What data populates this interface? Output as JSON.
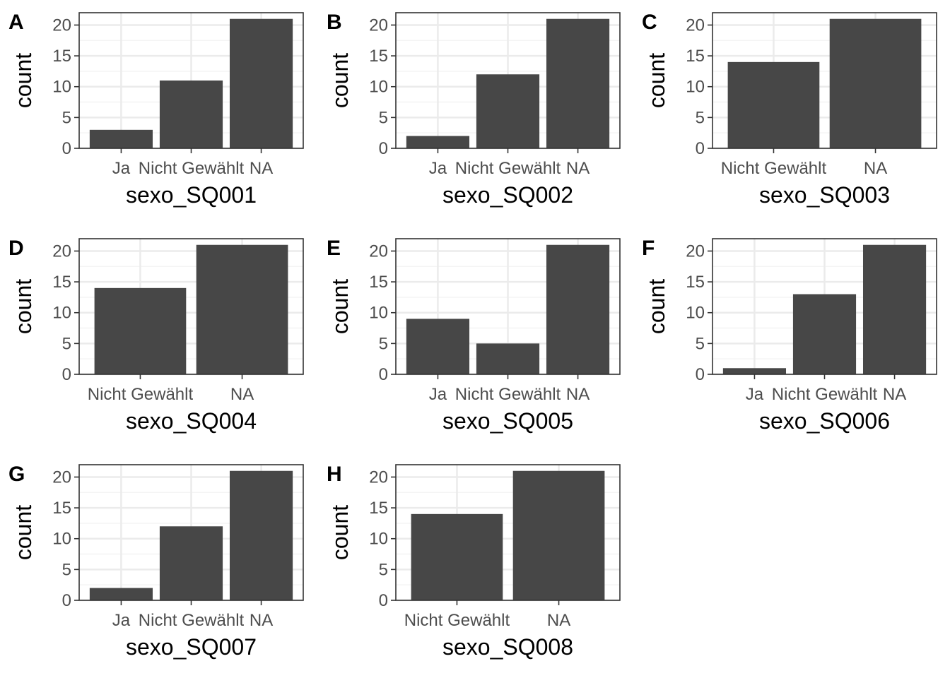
{
  "colors": {
    "bar": "#474747",
    "grid_major": "#ebebeb",
    "grid_minor": "#f4f4f4",
    "border": "#333333",
    "background": "#ffffff"
  },
  "chart_data": [
    {
      "panel": "A",
      "type": "bar",
      "categories": [
        "Ja",
        "Nicht Gewählt",
        "NA"
      ],
      "values": [
        3,
        11,
        21
      ],
      "xlabel": "sexo_SQ001",
      "ylabel": "count",
      "yticks": [
        0,
        5,
        10,
        15,
        20
      ],
      "ylim": [
        0,
        22
      ],
      "grid": true
    },
    {
      "panel": "B",
      "type": "bar",
      "categories": [
        "Ja",
        "Nicht Gewählt",
        "NA"
      ],
      "values": [
        2,
        12,
        21
      ],
      "xlabel": "sexo_SQ002",
      "ylabel": "count",
      "yticks": [
        0,
        5,
        10,
        15,
        20
      ],
      "ylim": [
        0,
        22
      ],
      "grid": true
    },
    {
      "panel": "C",
      "type": "bar",
      "categories": [
        "Nicht Gewählt",
        "NA"
      ],
      "values": [
        14,
        21
      ],
      "xlabel": "sexo_SQ003",
      "ylabel": "count",
      "yticks": [
        0,
        5,
        10,
        15,
        20
      ],
      "ylim": [
        0,
        22
      ],
      "grid": true
    },
    {
      "panel": "D",
      "type": "bar",
      "categories": [
        "Nicht Gewählt",
        "NA"
      ],
      "values": [
        14,
        21
      ],
      "xlabel": "sexo_SQ004",
      "ylabel": "count",
      "yticks": [
        0,
        5,
        10,
        15,
        20
      ],
      "ylim": [
        0,
        22
      ],
      "grid": true
    },
    {
      "panel": "E",
      "type": "bar",
      "categories": [
        "Ja",
        "Nicht Gewählt",
        "NA"
      ],
      "values": [
        9,
        5,
        21
      ],
      "xlabel": "sexo_SQ005",
      "ylabel": "count",
      "yticks": [
        0,
        5,
        10,
        15,
        20
      ],
      "ylim": [
        0,
        22
      ],
      "grid": true
    },
    {
      "panel": "F",
      "type": "bar",
      "categories": [
        "Ja",
        "Nicht Gewählt",
        "NA"
      ],
      "values": [
        1,
        13,
        21
      ],
      "xlabel": "sexo_SQ006",
      "ylabel": "count",
      "yticks": [
        0,
        5,
        10,
        15,
        20
      ],
      "ylim": [
        0,
        22
      ],
      "grid": true
    },
    {
      "panel": "G",
      "type": "bar",
      "categories": [
        "Ja",
        "Nicht Gewählt",
        "NA"
      ],
      "values": [
        2,
        12,
        21
      ],
      "xlabel": "sexo_SQ007",
      "ylabel": "count",
      "yticks": [
        0,
        5,
        10,
        15,
        20
      ],
      "ylim": [
        0,
        22
      ],
      "grid": true
    },
    {
      "panel": "H",
      "type": "bar",
      "categories": [
        "Nicht Gewählt",
        "NA"
      ],
      "values": [
        14,
        21
      ],
      "xlabel": "sexo_SQ008",
      "ylabel": "count",
      "yticks": [
        0,
        5,
        10,
        15,
        20
      ],
      "ylim": [
        0,
        22
      ],
      "grid": true
    }
  ]
}
